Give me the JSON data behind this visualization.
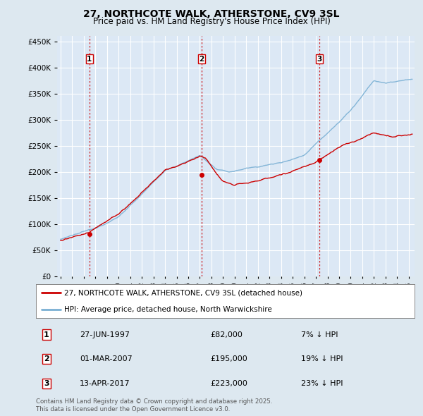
{
  "title": "27, NORTHCOTE WALK, ATHERSTONE, CV9 3SL",
  "subtitle": "Price paid vs. HM Land Registry's House Price Index (HPI)",
  "background_color": "#dde8f0",
  "plot_background": "#dce8f5",
  "grid_color": "#ffffff",
  "hpi_color": "#7ab0d4",
  "price_color": "#cc0000",
  "transactions": [
    {
      "num": 1,
      "date_label": "27-JUN-1997",
      "price": 82000,
      "pct": "7%",
      "direction": "↓",
      "x_year": 1997.48
    },
    {
      "num": 2,
      "date_label": "01-MAR-2007",
      "price": 195000,
      "pct": "19%",
      "direction": "↓",
      "x_year": 2007.16
    },
    {
      "num": 3,
      "date_label": "13-APR-2017",
      "price": 223000,
      "pct": "23%",
      "direction": "↓",
      "x_year": 2017.28
    }
  ],
  "legend_property_label": "27, NORTHCOTE WALK, ATHERSTONE, CV9 3SL (detached house)",
  "legend_hpi_label": "HPI: Average price, detached house, North Warwickshire",
  "footnote": "Contains HM Land Registry data © Crown copyright and database right 2025.\nThis data is licensed under the Open Government Licence v3.0.",
  "ylim": [
    0,
    460000
  ],
  "xlim_start": 1994.7,
  "xlim_end": 2025.5
}
